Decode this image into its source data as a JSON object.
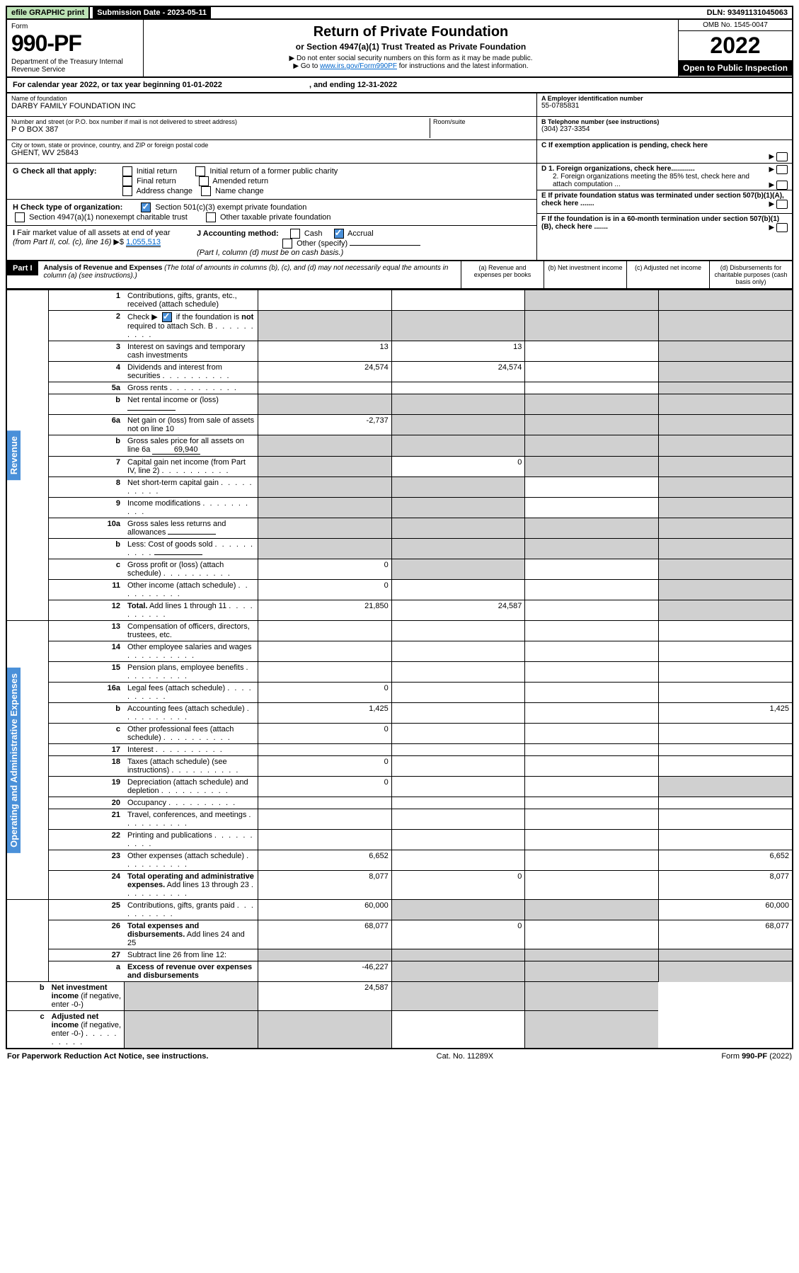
{
  "top": {
    "efile": "efile GRAPHIC print",
    "sub_label": "Submission Date - 2023-05-11",
    "dln": "DLN: 93491131045063"
  },
  "header": {
    "form_word": "Form",
    "form_no": "990-PF",
    "dept": "Department of the Treasury\nInternal Revenue Service",
    "title": "Return of Private Foundation",
    "subtitle": "or Section 4947(a)(1) Trust Treated as Private Foundation",
    "note1": "▶ Do not enter social security numbers on this form as it may be made public.",
    "note2_pre": "▶ Go to ",
    "note2_link": "www.irs.gov/Form990PF",
    "note2_post": " for instructions and the latest information.",
    "omb": "OMB No. 1545-0047",
    "year": "2022",
    "open": "Open to Public Inspection"
  },
  "cal": {
    "text": "For calendar year 2022, or tax year beginning 01-01-2022",
    "end": ", and ending 12-31-2022"
  },
  "entity": {
    "name_lbl": "Name of foundation",
    "name": "DARBY FAMILY FOUNDATION INC",
    "addr_lbl": "Number and street (or P.O. box number if mail is not delivered to street address)",
    "addr": "P O BOX 387",
    "room_lbl": "Room/suite",
    "city_lbl": "City or town, state or province, country, and ZIP or foreign postal code",
    "city": "GHENT, WV  25843",
    "ein_lbl": "A Employer identification number",
    "ein": "55-0785831",
    "tel_lbl": "B Telephone number (see instructions)",
    "tel": "(304) 237-3354",
    "c_lbl": "C If exemption application is pending, check here",
    "d1": "D 1. Foreign organizations, check here............",
    "d2": "2. Foreign organizations meeting the 85% test, check here and attach computation ...",
    "e": "E  If private foundation status was terminated under section 507(b)(1)(A), check here .......",
    "f": "F  If the foundation is in a 60-month termination under section 507(b)(1)(B), check here .......",
    "g_lbl": "G Check all that apply:",
    "g_opts": [
      "Initial return",
      "Initial return of a former public charity",
      "Final return",
      "Amended return",
      "Address change",
      "Name change"
    ],
    "h_lbl": "H Check type of organization:",
    "h_opts": [
      "Section 501(c)(3) exempt private foundation",
      "Section 4947(a)(1) nonexempt charitable trust",
      "Other taxable private foundation"
    ],
    "i_lbl": "I Fair market value of all assets at end of year (from Part II, col. (c), line 16)",
    "i_val": "1,055,513",
    "j_lbl": "J Accounting method:",
    "j_opts": [
      "Cash",
      "Accrual"
    ],
    "j_other": "Other (specify)",
    "j_note": "(Part I, column (d) must be on cash basis.)"
  },
  "part1": {
    "label": "Part I",
    "title": "Analysis of Revenue and Expenses",
    "title_note": "(The total of amounts in columns (b), (c), and (d) may not necessarily equal the amounts in column (a) (see instructions).)",
    "cols": [
      "(a)   Revenue and expenses per books",
      "(b)   Net investment income",
      "(c)   Adjusted net income",
      "(d)   Disbursements for charitable purposes (cash basis only)"
    ]
  },
  "vert": {
    "rev": "Revenue",
    "exp": "Operating and Administrative Expenses"
  },
  "rows": [
    {
      "n": "1",
      "d": "Contributions, gifts, grants, etc., received (attach schedule)",
      "a": "",
      "b": "",
      "c": "s",
      "dcol": "s"
    },
    {
      "n": "2",
      "d": "Check ▶ ☑ if the foundation is <b>not</b> required to attach Sch. B",
      "dots": true,
      "a": "s",
      "b": "s",
      "c": "s",
      "dcol": "s"
    },
    {
      "n": "3",
      "d": "Interest on savings and temporary cash investments",
      "a": "13",
      "b": "13",
      "c": "",
      "dcol": "s"
    },
    {
      "n": "4",
      "d": "Dividends and interest from securities",
      "dots": true,
      "a": "24,574",
      "b": "24,574",
      "c": "",
      "dcol": "s"
    },
    {
      "n": "5a",
      "d": "Gross rents",
      "dots": true,
      "a": "",
      "b": "",
      "c": "",
      "dcol": "s"
    },
    {
      "n": "b",
      "d": "Net rental income or (loss)",
      "box": true,
      "a": "s",
      "b": "s",
      "c": "s",
      "dcol": "s"
    },
    {
      "n": "6a",
      "d": "Net gain or (loss) from sale of assets not on line 10",
      "a": "-2,737",
      "b": "s",
      "c": "s",
      "dcol": "s"
    },
    {
      "n": "b",
      "d": "Gross sales price for all assets on line 6a",
      "box": true,
      "boxval": "69,940",
      "a": "s",
      "b": "s",
      "c": "s",
      "dcol": "s"
    },
    {
      "n": "7",
      "d": "Capital gain net income (from Part IV, line 2)",
      "dots": true,
      "a": "s",
      "b": "0",
      "c": "s",
      "dcol": "s"
    },
    {
      "n": "8",
      "d": "Net short-term capital gain",
      "dots": true,
      "a": "s",
      "b": "s",
      "c": "",
      "dcol": "s"
    },
    {
      "n": "9",
      "d": "Income modifications",
      "dots": true,
      "a": "s",
      "b": "s",
      "c": "",
      "dcol": "s"
    },
    {
      "n": "10a",
      "d": "Gross sales less returns and allowances",
      "box": true,
      "a": "s",
      "b": "s",
      "c": "s",
      "dcol": "s"
    },
    {
      "n": "b",
      "d": "Less: Cost of goods sold",
      "dots": true,
      "box": true,
      "a": "s",
      "b": "s",
      "c": "s",
      "dcol": "s"
    },
    {
      "n": "c",
      "d": "Gross profit or (loss) (attach schedule)",
      "dots": true,
      "a": "0",
      "b": "s",
      "c": "",
      "dcol": "s"
    },
    {
      "n": "11",
      "d": "Other income (attach schedule)",
      "dots": true,
      "a": "0",
      "b": "",
      "c": "",
      "dcol": "s"
    },
    {
      "n": "12",
      "d": "<b>Total.</b> Add lines 1 through 11",
      "dots": true,
      "a": "21,850",
      "b": "24,587",
      "c": "",
      "dcol": "s"
    },
    {
      "n": "13",
      "d": "Compensation of officers, directors, trustees, etc.",
      "a": "",
      "b": "",
      "c": "",
      "dcol": ""
    },
    {
      "n": "14",
      "d": "Other employee salaries and wages",
      "dots": true,
      "a": "",
      "b": "",
      "c": "",
      "dcol": ""
    },
    {
      "n": "15",
      "d": "Pension plans, employee benefits",
      "dots": true,
      "a": "",
      "b": "",
      "c": "",
      "dcol": ""
    },
    {
      "n": "16a",
      "d": "Legal fees (attach schedule)",
      "dots": true,
      "a": "0",
      "b": "",
      "c": "",
      "dcol": ""
    },
    {
      "n": "b",
      "d": "Accounting fees (attach schedule)",
      "dots": true,
      "a": "1,425",
      "b": "",
      "c": "",
      "dcol": "1,425"
    },
    {
      "n": "c",
      "d": "Other professional fees (attach schedule)",
      "dots": true,
      "a": "0",
      "b": "",
      "c": "",
      "dcol": ""
    },
    {
      "n": "17",
      "d": "Interest",
      "dots": true,
      "a": "",
      "b": "",
      "c": "",
      "dcol": ""
    },
    {
      "n": "18",
      "d": "Taxes (attach schedule) (see instructions)",
      "dots": true,
      "a": "0",
      "b": "",
      "c": "",
      "dcol": ""
    },
    {
      "n": "19",
      "d": "Depreciation (attach schedule) and depletion",
      "dots": true,
      "a": "0",
      "b": "",
      "c": "",
      "dcol": "s"
    },
    {
      "n": "20",
      "d": "Occupancy",
      "dots": true,
      "a": "",
      "b": "",
      "c": "",
      "dcol": ""
    },
    {
      "n": "21",
      "d": "Travel, conferences, and meetings",
      "dots": true,
      "a": "",
      "b": "",
      "c": "",
      "dcol": ""
    },
    {
      "n": "22",
      "d": "Printing and publications",
      "dots": true,
      "a": "",
      "b": "",
      "c": "",
      "dcol": ""
    },
    {
      "n": "23",
      "d": "Other expenses (attach schedule)",
      "dots": true,
      "a": "6,652",
      "b": "",
      "c": "",
      "dcol": "6,652"
    },
    {
      "n": "24",
      "d": "<b>Total operating and administrative expenses.</b> Add lines 13 through 23",
      "dots": true,
      "a": "8,077",
      "b": "0",
      "c": "",
      "dcol": "8,077"
    },
    {
      "n": "25",
      "d": "Contributions, gifts, grants paid",
      "dots": true,
      "a": "60,000",
      "b": "s",
      "c": "s",
      "dcol": "60,000"
    },
    {
      "n": "26",
      "d": "<b>Total expenses and disbursements.</b> Add lines 24 and 25",
      "a": "68,077",
      "b": "0",
      "c": "",
      "dcol": "68,077"
    },
    {
      "n": "27",
      "d": "Subtract line 26 from line 12:",
      "a": "s",
      "b": "s",
      "c": "s",
      "dcol": "s"
    },
    {
      "n": "a",
      "d": "<b>Excess of revenue over expenses and disbursements</b>",
      "a": "-46,227",
      "b": "s",
      "c": "s",
      "dcol": "s"
    },
    {
      "n": "b",
      "d": "<b>Net investment income</b> (if negative, enter -0-)",
      "a": "s",
      "b": "24,587",
      "c": "s",
      "dcol": "s"
    },
    {
      "n": "c",
      "d": "<b>Adjusted net income</b> (if negative, enter -0-)",
      "dots": true,
      "a": "s",
      "b": "s",
      "c": "",
      "dcol": "s"
    }
  ],
  "footer": {
    "left": "For Paperwork Reduction Act Notice, see instructions.",
    "mid": "Cat. No. 11289X",
    "right": "Form 990-PF (2022)"
  }
}
